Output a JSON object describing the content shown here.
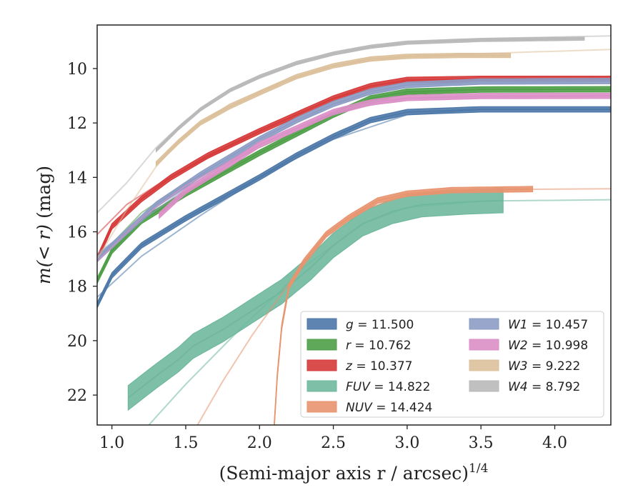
{
  "chart_data": {
    "type": "line",
    "xlabel": "(Semi-major axis r / arcsec)",
    "xlabel_sup": "1/4",
    "ylabel_math": "m(< r)",
    "ylabel_unit": "(mag)",
    "xlim": [
      0.9,
      4.38
    ],
    "ylim": [
      23.1,
      8.4
    ],
    "y_inverted": true,
    "grid": false,
    "legend_position": "lower-right",
    "xticks": [
      1.0,
      1.5,
      2.0,
      2.5,
      3.0,
      3.5,
      4.0
    ],
    "xtick_labels": [
      "1.0",
      "1.5",
      "2.0",
      "2.5",
      "3.0",
      "3.5",
      "4.0"
    ],
    "yticks": [
      10,
      12,
      14,
      16,
      18,
      20,
      22
    ],
    "ytick_labels": [
      "10",
      "12",
      "14",
      "16",
      "18",
      "20",
      "22"
    ],
    "series": [
      {
        "name": "g = 11.500",
        "label_var": "g",
        "label_val": "= 11.500",
        "color": "#4c78a8",
        "band": 0.1,
        "points": [
          [
            0.9,
            18.7
          ],
          [
            1.0,
            17.6
          ],
          [
            1.2,
            16.5
          ],
          [
            1.5,
            15.5
          ],
          [
            1.8,
            14.6
          ],
          [
            2.0,
            14.0
          ],
          [
            2.25,
            13.2
          ],
          [
            2.5,
            12.5
          ],
          [
            2.75,
            11.9
          ],
          [
            3.0,
            11.6
          ],
          [
            3.5,
            11.5
          ],
          [
            4.38,
            11.5
          ]
        ],
        "faint": [
          [
            0.9,
            18.4
          ],
          [
            1.2,
            16.9
          ],
          [
            1.6,
            15.4
          ],
          [
            2.0,
            14.0
          ],
          [
            2.5,
            12.6
          ],
          [
            3.0,
            11.7
          ],
          [
            3.5,
            11.5
          ],
          [
            4.38,
            11.5
          ]
        ]
      },
      {
        "name": "r = 10.762",
        "label_var": "r",
        "label_val": "= 10.762",
        "color": "#4e9f47",
        "band": 0.1,
        "points": [
          [
            0.9,
            17.8
          ],
          [
            1.0,
            16.7
          ],
          [
            1.2,
            15.6
          ],
          [
            1.5,
            14.6
          ],
          [
            1.8,
            13.7
          ],
          [
            2.0,
            13.1
          ],
          [
            2.25,
            12.4
          ],
          [
            2.5,
            11.7
          ],
          [
            2.75,
            11.1
          ],
          [
            3.0,
            10.85
          ],
          [
            3.5,
            10.77
          ],
          [
            4.38,
            10.76
          ]
        ],
        "faint": [
          [
            0.9,
            17.0
          ],
          [
            1.2,
            15.3
          ],
          [
            1.5,
            14.2
          ],
          [
            2.0,
            12.9
          ],
          [
            2.5,
            11.7
          ],
          [
            3.0,
            10.9
          ],
          [
            3.5,
            10.77
          ],
          [
            4.38,
            10.76
          ]
        ]
      },
      {
        "name": "z = 10.377",
        "label_var": "z",
        "label_val": "= 10.377",
        "color": "#d63a3a",
        "band": 0.1,
        "points": [
          [
            0.9,
            17.0
          ],
          [
            1.0,
            15.8
          ],
          [
            1.2,
            14.8
          ],
          [
            1.4,
            14.0
          ],
          [
            1.65,
            13.2
          ],
          [
            2.0,
            12.3
          ],
          [
            2.25,
            11.7
          ],
          [
            2.5,
            11.1
          ],
          [
            2.75,
            10.65
          ],
          [
            3.0,
            10.42
          ],
          [
            3.5,
            10.38
          ],
          [
            4.38,
            10.38
          ]
        ],
        "faint": [
          [
            0.9,
            16.1
          ],
          [
            1.1,
            15.0
          ],
          [
            1.3,
            14.3
          ],
          [
            1.6,
            13.4
          ],
          [
            2.0,
            12.3
          ],
          [
            2.5,
            11.1
          ],
          [
            3.0,
            10.45
          ],
          [
            4.38,
            10.38
          ]
        ]
      },
      {
        "name": "FUV = 14.822",
        "label_var": "FUV",
        "label_val": "= 14.822",
        "color": "#6fb89d",
        "band": 0.45,
        "points": [
          [
            1.11,
            22.1
          ],
          [
            1.3,
            21.3
          ],
          [
            1.45,
            20.7
          ],
          [
            1.55,
            20.2
          ],
          [
            1.75,
            19.6
          ],
          [
            1.95,
            18.9
          ],
          [
            2.15,
            18.2
          ],
          [
            2.35,
            17.3
          ],
          [
            2.5,
            16.5
          ],
          [
            2.7,
            15.7
          ],
          [
            2.9,
            15.25
          ],
          [
            3.1,
            15.0
          ],
          [
            3.4,
            14.9
          ],
          [
            3.65,
            14.85
          ]
        ],
        "faint": [
          [
            1.25,
            23.1
          ],
          [
            1.5,
            21.6
          ],
          [
            1.7,
            20.5
          ],
          [
            1.9,
            19.4
          ],
          [
            2.1,
            18.4
          ],
          [
            2.3,
            17.3
          ],
          [
            2.5,
            16.5
          ],
          [
            2.7,
            15.7
          ],
          [
            3.0,
            15.1
          ],
          [
            3.5,
            14.87
          ],
          [
            4.38,
            14.82
          ]
        ]
      },
      {
        "name": "NUV = 14.424",
        "label_var": "NUV",
        "label_val": "= 14.424",
        "color": "#e8946f",
        "band": 0.1,
        "points": [
          [
            2.1,
            23.1
          ],
          [
            2.12,
            21.3
          ],
          [
            2.15,
            19.5
          ],
          [
            2.2,
            18.0
          ],
          [
            2.3,
            17.1
          ],
          [
            2.45,
            16.1
          ],
          [
            2.6,
            15.5
          ],
          [
            2.8,
            14.85
          ],
          [
            3.0,
            14.6
          ],
          [
            3.3,
            14.47
          ],
          [
            3.85,
            14.43
          ]
        ],
        "faint": [
          [
            1.58,
            23.1
          ],
          [
            1.75,
            21.5
          ],
          [
            1.95,
            19.8
          ],
          [
            2.2,
            17.9
          ],
          [
            2.45,
            16.2
          ],
          [
            2.7,
            15.2
          ],
          [
            3.0,
            14.65
          ],
          [
            3.5,
            14.45
          ],
          [
            4.38,
            14.42
          ]
        ]
      },
      {
        "name": "W1 = 10.457",
        "label_var": "W1",
        "label_val": "= 10.457",
        "color": "#8c9cc4",
        "band": 0.1,
        "points": [
          [
            0.9,
            17.0
          ],
          [
            1.1,
            16.0
          ],
          [
            1.3,
            15.0
          ],
          [
            1.6,
            13.9
          ],
          [
            2.0,
            12.6
          ],
          [
            2.25,
            11.9
          ],
          [
            2.5,
            11.3
          ],
          [
            2.75,
            10.85
          ],
          [
            3.0,
            10.6
          ],
          [
            3.5,
            10.48
          ],
          [
            4.38,
            10.46
          ]
        ],
        "faint": [
          [
            0.9,
            16.8
          ],
          [
            1.2,
            15.6
          ],
          [
            1.5,
            14.4
          ],
          [
            2.0,
            12.7
          ],
          [
            2.5,
            11.3
          ],
          [
            3.0,
            10.6
          ],
          [
            4.38,
            10.46
          ]
        ]
      },
      {
        "name": "W2 = 10.998",
        "label_var": "W2",
        "label_val": "= 10.998",
        "color": "#dc8fc7",
        "band": 0.1,
        "points": [
          [
            1.32,
            15.4
          ],
          [
            1.5,
            14.5
          ],
          [
            1.8,
            13.5
          ],
          [
            2.0,
            12.8
          ],
          [
            2.25,
            12.2
          ],
          [
            2.5,
            11.6
          ],
          [
            2.75,
            11.25
          ],
          [
            3.0,
            11.08
          ],
          [
            3.5,
            11.01
          ],
          [
            4.38,
            11.0
          ]
        ],
        "faint": [
          [
            0.9,
            17.1
          ],
          [
            1.2,
            15.5
          ],
          [
            1.5,
            14.3
          ],
          [
            2.0,
            12.8
          ],
          [
            2.5,
            11.6
          ],
          [
            3.0,
            11.1
          ],
          [
            4.38,
            11.0
          ]
        ]
      },
      {
        "name": "W3 = 9.222",
        "label_var": "W3",
        "label_val": "= 9.222",
        "color": "#dcc09b",
        "band": 0.08,
        "points": [
          [
            1.3,
            13.5
          ],
          [
            1.45,
            12.7
          ],
          [
            1.6,
            12.0
          ],
          [
            1.8,
            11.4
          ],
          [
            2.0,
            10.9
          ],
          [
            2.25,
            10.3
          ],
          [
            2.5,
            9.9
          ],
          [
            2.75,
            9.65
          ],
          [
            3.0,
            9.55
          ],
          [
            3.35,
            9.52
          ],
          [
            3.7,
            9.52
          ]
        ],
        "faint": [
          [
            0.9,
            17.0
          ],
          [
            1.1,
            15.2
          ],
          [
            1.3,
            13.6
          ],
          [
            1.5,
            12.4
          ],
          [
            1.8,
            11.3
          ],
          [
            2.1,
            10.6
          ],
          [
            2.5,
            9.9
          ],
          [
            3.0,
            9.55
          ],
          [
            3.5,
            9.45
          ],
          [
            4.38,
            9.3
          ]
        ]
      },
      {
        "name": "W4 = 8.792",
        "label_var": "W4",
        "label_val": "= 8.792",
        "color": "#b9b9b9",
        "band": 0.06,
        "points": [
          [
            1.3,
            13.0
          ],
          [
            1.45,
            12.2
          ],
          [
            1.6,
            11.5
          ],
          [
            1.8,
            10.8
          ],
          [
            2.0,
            10.3
          ],
          [
            2.25,
            9.8
          ],
          [
            2.5,
            9.45
          ],
          [
            2.75,
            9.2
          ],
          [
            3.0,
            9.05
          ],
          [
            3.5,
            8.95
          ],
          [
            4.2,
            8.9
          ]
        ],
        "faint": [
          [
            0.9,
            15.3
          ],
          [
            1.1,
            14.2
          ],
          [
            1.3,
            12.9
          ],
          [
            1.5,
            11.9
          ],
          [
            1.8,
            10.8
          ],
          [
            2.1,
            10.1
          ],
          [
            2.5,
            9.45
          ],
          [
            3.0,
            9.05
          ],
          [
            3.5,
            8.9
          ],
          [
            4.38,
            8.8
          ]
        ]
      }
    ]
  }
}
